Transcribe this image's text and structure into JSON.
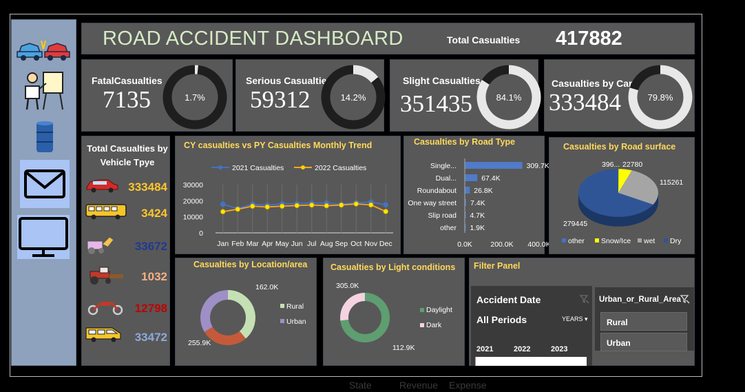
{
  "header": {
    "title": "ROAD ACCIDENT DASHBOARD",
    "total_label": "Total Casualties",
    "total_value": "417882"
  },
  "sidebar": {
    "icons": [
      "car-crash-icon",
      "presenter-icon",
      "barrel-icon",
      "mail-icon",
      "monitor-icon"
    ]
  },
  "kpis": [
    {
      "label": "FatalCasualties",
      "value": "7135",
      "pct_label": "1.7%",
      "pct": 1.7
    },
    {
      "label": "Serious Casualties",
      "value": "59312",
      "pct_label": "14.2%",
      "pct": 14.2
    },
    {
      "label": "Slight Casualties",
      "value": "351435",
      "pct_label": "84.1%",
      "pct": 84.1
    },
    {
      "label": "Casualties by Car",
      "value": "333484",
      "pct_label": "79.8%",
      "pct": 79.8
    }
  ],
  "vehicle": {
    "title": "Total Casualties by Vehicle Tpye",
    "rows": [
      {
        "icon": "car-icon",
        "value": "333484",
        "color": "#ffc62b"
      },
      {
        "icon": "bus-icon",
        "value": "3424",
        "color": "#ffc62b"
      },
      {
        "icon": "farm-vehicle-icon",
        "value": "33672",
        "color": "#1f3a93"
      },
      {
        "icon": "tractor-icon",
        "value": "1032",
        "color": "#f4b183"
      },
      {
        "icon": "motorcycle-icon",
        "value": "12798",
        "color": "#c00000"
      },
      {
        "icon": "van-icon",
        "value": "33472",
        "color": "#8ea9db"
      }
    ]
  },
  "chart_data": [
    {
      "type": "line",
      "title": "CY casualties vs PY Casualties Monthly Trend",
      "categories": [
        "Jan",
        "Feb",
        "Mar",
        "Apr",
        "May",
        "Jun",
        "Jul",
        "Aug",
        "Sep",
        "Oct",
        "Nov",
        "Dec"
      ],
      "series": [
        {
          "name": "2021 Casualties",
          "color": "#4472c4",
          "values": [
            17800,
            15200,
            17800,
            17200,
            18100,
            18200,
            18500,
            18600,
            17800,
            18800,
            19200,
            17500
          ]
        },
        {
          "name": "2022 Casualties",
          "color": "#f5a623",
          "values": [
            13200,
            14700,
            16600,
            16100,
            16600,
            17000,
            17300,
            16900,
            17300,
            18000,
            17400,
            13300
          ]
        }
      ],
      "ylim": [
        0,
        30000
      ],
      "yticks": [
        "0",
        "10000",
        "20000",
        "30000"
      ]
    },
    {
      "type": "bar",
      "title": "Casualties by Road Type",
      "categories": [
        "Single...",
        "Dual...",
        "Roundabout",
        "One way street",
        "Slip road",
        "other"
      ],
      "values": [
        309700,
        67400,
        26800,
        7400,
        4700,
        1900
      ],
      "value_labels": [
        "309.7K",
        "67.4K",
        "26.8K",
        "7.4K",
        "4.7K",
        "1.9K"
      ],
      "xticks": [
        "0.0K",
        "200.0K",
        "400.0K"
      ],
      "xlim": [
        0,
        400000
      ]
    },
    {
      "type": "pie",
      "title": "Casualties by Road surface",
      "labels": [
        "other",
        "Snow/Ice",
        "wet",
        "Dry"
      ],
      "values": [
        396,
        22780,
        115261,
        279445
      ],
      "value_labels": [
        "396",
        "22780",
        "115261",
        "279445"
      ],
      "colors": [
        "#4472c4",
        "#ffff00",
        "#a5a5a5",
        "#2f5597"
      ]
    },
    {
      "type": "pie",
      "title": "Casualties by Location/area",
      "labels": [
        "Rural",
        "Urban"
      ],
      "values": [
        162000,
        255900
      ],
      "value_labels": [
        "162.0K",
        "255.9K"
      ],
      "colors": [
        "#c5e0b4",
        "#9e8fc7"
      ]
    },
    {
      "type": "pie",
      "title": "Casualties by Light conditions",
      "labels": [
        "Daylight",
        "Dark"
      ],
      "values": [
        305000,
        112900
      ],
      "value_labels": [
        "305.0K",
        "112.9K"
      ],
      "colors": [
        "#5e9e70",
        "#f4d3e0"
      ]
    }
  ],
  "filter": {
    "title": "Filter Panel",
    "date_title": "Accident Date",
    "all_periods": "All Periods",
    "years_label": "YEARS",
    "years": [
      "2021",
      "2022",
      "2023"
    ],
    "area_title": "Urban_or_Rural_Area",
    "area_items": [
      "Rural",
      "Urban"
    ]
  },
  "ghost": {
    "state": "State",
    "revenue": "Revenue",
    "expense": "Expense"
  },
  "colors": {
    "panel": "#585858",
    "accent_title": "#ffd85c",
    "ring_track": "#1e1e1e",
    "ring_fill": "#e8e8e8"
  }
}
